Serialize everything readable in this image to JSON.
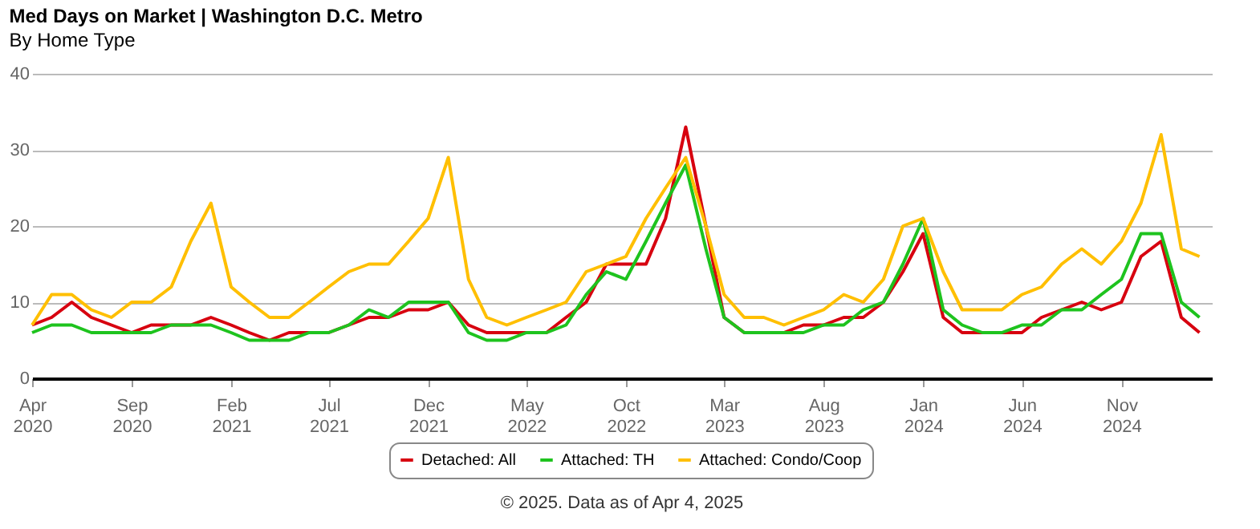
{
  "chart_data": {
    "type": "line",
    "title": "Med Days on Market | Washington D.C. Metro",
    "subtitle": "By Home Type",
    "x": [
      "2020-04",
      "2020-05",
      "2020-06",
      "2020-07",
      "2020-08",
      "2020-09",
      "2020-10",
      "2020-11",
      "2020-12",
      "2021-01",
      "2021-02",
      "2021-03",
      "2021-04",
      "2021-05",
      "2021-06",
      "2021-07",
      "2021-08",
      "2021-09",
      "2021-10",
      "2021-11",
      "2021-12",
      "2022-01",
      "2022-02",
      "2022-03",
      "2022-04",
      "2022-05",
      "2022-06",
      "2022-07",
      "2022-08",
      "2022-09",
      "2022-10",
      "2022-11",
      "2022-12",
      "2023-01",
      "2023-02",
      "2023-03",
      "2023-04",
      "2023-05",
      "2023-06",
      "2023-07",
      "2023-08",
      "2023-09",
      "2023-10",
      "2023-11",
      "2023-12",
      "2024-01",
      "2024-02",
      "2024-03",
      "2024-04",
      "2024-05",
      "2024-06",
      "2024-07",
      "2024-08",
      "2024-09",
      "2024-10",
      "2024-11",
      "2024-12",
      "2025-01",
      "2025-02",
      "2025-03"
    ],
    "series": [
      {
        "name": "Detached: All",
        "color": "#d7000f",
        "values": [
          7,
          8,
          10,
          8,
          7,
          6,
          7,
          7,
          7,
          8,
          7,
          6,
          5,
          6,
          6,
          6,
          7,
          8,
          8,
          9,
          9,
          10,
          7,
          6,
          6,
          6,
          6,
          8,
          10,
          15,
          15,
          15,
          21,
          33,
          20,
          8,
          6,
          6,
          6,
          7,
          7,
          8,
          8,
          10,
          14,
          19,
          8,
          6,
          6,
          6,
          6,
          8,
          9,
          10,
          9,
          10,
          16,
          18,
          8,
          6
        ]
      },
      {
        "name": "Attached: TH",
        "color": "#1ec31e",
        "values": [
          6,
          7,
          7,
          6,
          6,
          6,
          6,
          7,
          7,
          7,
          6,
          5,
          5,
          5,
          6,
          6,
          7,
          9,
          8,
          10,
          10,
          10,
          6,
          5,
          5,
          6,
          6,
          7,
          11,
          14,
          13,
          18,
          23,
          28,
          17,
          8,
          6,
          6,
          6,
          6,
          7,
          7,
          9,
          10,
          15,
          21,
          9,
          7,
          6,
          6,
          7,
          7,
          9,
          9,
          11,
          13,
          19,
          19,
          10,
          8
        ]
      },
      {
        "name": "Attached: Condo/Coop",
        "color": "#ffbf00",
        "values": [
          7,
          11,
          11,
          9,
          8,
          10,
          10,
          12,
          18,
          23,
          12,
          10,
          8,
          8,
          10,
          12,
          14,
          15,
          15,
          18,
          21,
          29,
          13,
          8,
          7,
          8,
          9,
          10,
          14,
          15,
          16,
          21,
          25,
          29,
          20,
          11,
          8,
          8,
          7,
          8,
          9,
          11,
          10,
          13,
          20,
          21,
          14,
          9,
          9,
          9,
          11,
          12,
          15,
          17,
          15,
          18,
          23,
          32,
          17,
          16
        ]
      }
    ],
    "xlim": [
      "2020-04-01",
      "2025-03-20"
    ],
    "xticks": [
      {
        "value": "2020-04",
        "label": "Apr 2020"
      },
      {
        "value": "2020-09",
        "label": "Sep 2020"
      },
      {
        "value": "2021-02",
        "label": "Feb 2021"
      },
      {
        "value": "2021-07",
        "label": "Jul 2021"
      },
      {
        "value": "2021-12",
        "label": "Dec 2021"
      },
      {
        "value": "2022-05",
        "label": "May 2022"
      },
      {
        "value": "2022-10",
        "label": "Oct 2022"
      },
      {
        "value": "2023-03",
        "label": "Mar 2023"
      },
      {
        "value": "2023-08",
        "label": "Aug 2023"
      },
      {
        "value": "2024-01",
        "label": "Jan 2024"
      },
      {
        "value": "2024-06",
        "label": "Jun 2024"
      },
      {
        "value": "2024-11",
        "label": "Nov 2024"
      }
    ],
    "ylim": [
      0,
      40
    ],
    "yticks": [
      0,
      10,
      20,
      30,
      40
    ],
    "grid": "y",
    "legend": "bottom",
    "marker": "none",
    "line_style": "solid",
    "annotations": [
      "© 2025. Data as of Apr 4, 2025"
    ]
  }
}
